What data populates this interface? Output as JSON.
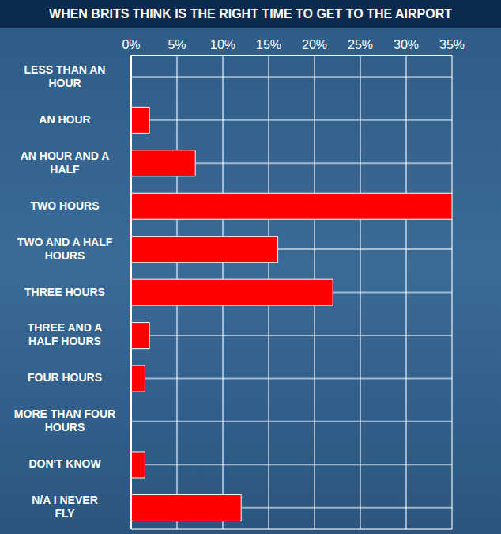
{
  "chart_data": {
    "type": "bar",
    "title": "WHEN BRITS THINK IS THE RIGHT TIME TO GET TO THE AIRPORT",
    "categories": [
      "LESS THAN AN HOUR",
      "AN HOUR",
      "AN HOUR AND A HALF",
      "TWO HOURS",
      "TWO AND A HALF HOURS",
      "THREE HOURS",
      "THREE AND A HALF HOURS",
      "FOUR HOURS",
      "MORE THAN FOUR HOURS",
      "DON'T KNOW",
      "N/A I NEVER FLY"
    ],
    "values": [
      0,
      2,
      7,
      35,
      16,
      22,
      2,
      1.5,
      0,
      1.5,
      12
    ],
    "color": "#ff0000",
    "orientation": "horizontal",
    "xlim": [
      0,
      35
    ],
    "xticks": [
      {
        "value": 0,
        "label": "0%"
      },
      {
        "value": 5,
        "label": "5%"
      },
      {
        "value": 10,
        "label": "10%"
      },
      {
        "value": 15,
        "label": "15%"
      },
      {
        "value": 20,
        "label": "20%"
      },
      {
        "value": 25,
        "label": "25%"
      },
      {
        "value": 30,
        "label": "30%"
      },
      {
        "value": 35,
        "label": "35%"
      }
    ],
    "grid": true
  }
}
